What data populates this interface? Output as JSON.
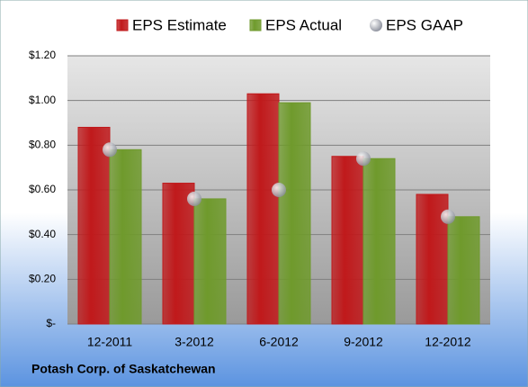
{
  "chart_data": {
    "type": "bar",
    "footer": "Potash Corp. of Saskatchewan",
    "categories": [
      "12-2011",
      "3-2012",
      "6-2012",
      "9-2012",
      "12-2012"
    ],
    "series": [
      {
        "name": "EPS Estimate",
        "color": "#c0191b",
        "values": [
          0.88,
          0.63,
          1.03,
          0.75,
          0.58
        ]
      },
      {
        "name": "EPS Actual",
        "color": "#6f9a2c",
        "values": [
          0.78,
          0.56,
          0.99,
          0.74,
          0.48
        ]
      },
      {
        "name": "EPS GAAP",
        "color": "#c8ccd6",
        "type": "scatter",
        "values": [
          0.78,
          0.56,
          0.6,
          0.74,
          0.48
        ]
      }
    ],
    "ylim": [
      0,
      1.2
    ],
    "yticks": [
      {
        "value": 0,
        "label": "$-"
      },
      {
        "value": 0.2,
        "label": "$0.20"
      },
      {
        "value": 0.4,
        "label": "$0.40"
      },
      {
        "value": 0.6,
        "label": "$0.60"
      },
      {
        "value": 0.8,
        "label": "$0.80"
      },
      {
        "value": 1.0,
        "label": "$1.00"
      },
      {
        "value": 1.2,
        "label": "$1.20"
      }
    ],
    "grid": true
  }
}
